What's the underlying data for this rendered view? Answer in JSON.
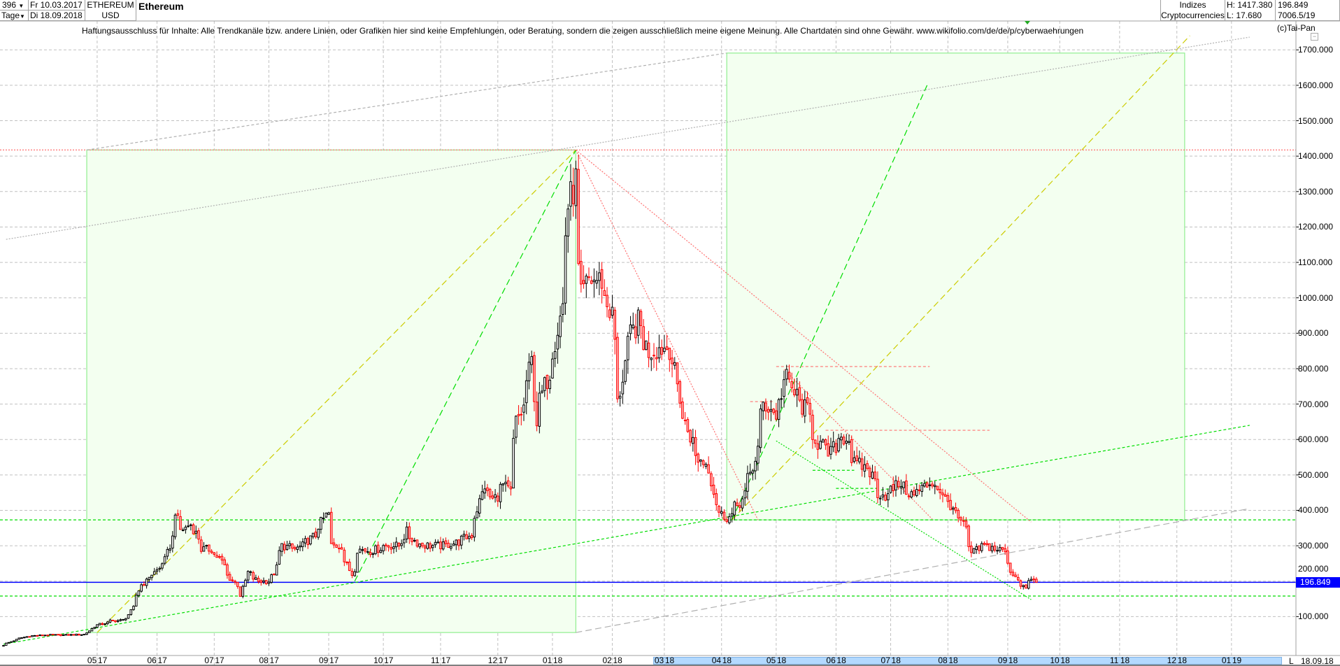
{
  "header": {
    "bar_count": "396",
    "bar_count_arrow": "▼",
    "period": "Tage",
    "period_arrow": "▼",
    "date_from": "Fr 10.03.2017",
    "date_to": "Di 18.09.2018",
    "symbol": "ETHEREUM",
    "currency": "USD",
    "title": "Ethereum",
    "category_1": "Indizes",
    "category_2": "Cryptocurrencies",
    "high": "H: 1417.380",
    "low": "L: 17.680",
    "last_value": "196.849",
    "extra_value": "7006.5/19"
  },
  "disclaimer": "Haftungsausschluss für Inhalte: Alle Trendkanäle bzw. andere Linien, oder Grafiken hier sind keine Empfehlungen, oder Beratung, sondern die zeigen ausschließlich meine eigene Meinung. Alle Chartdaten sind ohne Gewähr.  www.wikifolio.com/de/de/p/cyberwaehrungen",
  "copyright": "(c)Tai-Pan",
  "minimize_glyph": "−",
  "footer": {
    "scale_mode": "L",
    "last_date": "18.09.18"
  },
  "colors": {
    "up_candle": "#000000",
    "down_candle": "#ff0000",
    "grid": "#c0c0c0",
    "current_price": "#0000ff",
    "box_fill": "#f3fff0",
    "box_stroke": "#90ee90",
    "green": "#00dd00",
    "yellow": "#cccc00",
    "red": "#ff7070",
    "grey": "#b0b0b0"
  },
  "chart_data": {
    "type": "candlestick",
    "title": "Ethereum",
    "interval": "daily (weekdays)",
    "x_range": [
      "2017-03-10",
      "2019-01-25"
    ],
    "ylim": [
      0,
      1800
    ],
    "grid": true,
    "current_price": 196.849,
    "current_price_label": "196.849",
    "y_ticks": [
      {
        "value": 100,
        "label": "100.000"
      },
      {
        "value": 200,
        "label": "200.000"
      },
      {
        "value": 300,
        "label": "300.000"
      },
      {
        "value": 400,
        "label": "400.000"
      },
      {
        "value": 500,
        "label": "500.000"
      },
      {
        "value": 600,
        "label": "600.000"
      },
      {
        "value": 700,
        "label": "700.000"
      },
      {
        "value": 800,
        "label": "800.000"
      },
      {
        "value": 900,
        "label": "900.000"
      },
      {
        "value": 1000,
        "label": "1000.000"
      },
      {
        "value": 1100,
        "label": "1100.000"
      },
      {
        "value": 1200,
        "label": "1200.000"
      },
      {
        "value": 1300,
        "label": "1300.000"
      },
      {
        "value": 1400,
        "label": "1400.000"
      },
      {
        "value": 1500,
        "label": "1500.000"
      },
      {
        "value": 1600,
        "label": "1600.000"
      },
      {
        "value": 1700,
        "label": "1700.000"
      }
    ],
    "x_ticks": [
      {
        "date": "2017-05-01",
        "month": "05",
        "year": "17"
      },
      {
        "date": "2017-06-01",
        "month": "06",
        "year": "17"
      },
      {
        "date": "2017-07-01",
        "month": "07",
        "year": "17"
      },
      {
        "date": "2017-08-01",
        "month": "08",
        "year": "17"
      },
      {
        "date": "2017-09-01",
        "month": "09",
        "year": "17"
      },
      {
        "date": "2017-10-01",
        "month": "10",
        "year": "17"
      },
      {
        "date": "2017-11-01",
        "month": "11",
        "year": "17"
      },
      {
        "date": "2017-12-01",
        "month": "12",
        "year": "17"
      },
      {
        "date": "2018-01-01",
        "month": "01",
        "year": "18"
      },
      {
        "date": "2018-02-01",
        "month": "02",
        "year": "18"
      },
      {
        "date": "2018-03-01",
        "month": "03",
        "year": "18"
      },
      {
        "date": "2018-04-01",
        "month": "04",
        "year": "18"
      },
      {
        "date": "2018-05-01",
        "month": "05",
        "year": "18"
      },
      {
        "date": "2018-06-01",
        "month": "06",
        "year": "18"
      },
      {
        "date": "2018-07-01",
        "month": "07",
        "year": "18"
      },
      {
        "date": "2018-08-01",
        "month": "08",
        "year": "18"
      },
      {
        "date": "2018-09-01",
        "month": "09",
        "year": "18"
      },
      {
        "date": "2018-10-01",
        "month": "10",
        "year": "18"
      },
      {
        "date": "2018-11-01",
        "month": "11",
        "year": "18"
      },
      {
        "date": "2018-12-01",
        "month": "12",
        "year": "18"
      },
      {
        "date": "2019-01-01",
        "month": "01",
        "year": "19"
      }
    ],
    "highlight_range": [
      "2018-03-01",
      "2019-01-22"
    ],
    "close_keyframes": [
      [
        "2017-03-10",
        19
      ],
      [
        "2017-03-17",
        35
      ],
      [
        "2017-03-24",
        45
      ],
      [
        "2017-04-03",
        48
      ],
      [
        "2017-04-14",
        48
      ],
      [
        "2017-04-24",
        50
      ],
      [
        "2017-04-28",
        72
      ],
      [
        "2017-05-08",
        88
      ],
      [
        "2017-05-15",
        90
      ],
      [
        "2017-05-19",
        125
      ],
      [
        "2017-05-24",
        190
      ],
      [
        "2017-05-31",
        225
      ],
      [
        "2017-06-06",
        260
      ],
      [
        "2017-06-12",
        400
      ],
      [
        "2017-06-14",
        345
      ],
      [
        "2017-06-20",
        360
      ],
      [
        "2017-06-26",
        290
      ],
      [
        "2017-06-30",
        290
      ],
      [
        "2017-07-05",
        265
      ],
      [
        "2017-07-10",
        215
      ],
      [
        "2017-07-14",
        190
      ],
      [
        "2017-07-17",
        160
      ],
      [
        "2017-07-20",
        225
      ],
      [
        "2017-07-26",
        200
      ],
      [
        "2017-08-01",
        200
      ],
      [
        "2017-08-08",
        300
      ],
      [
        "2017-08-15",
        290
      ],
      [
        "2017-08-21",
        310
      ],
      [
        "2017-08-25",
        330
      ],
      [
        "2017-08-31",
        385
      ],
      [
        "2017-09-01",
        390
      ],
      [
        "2017-09-04",
        300
      ],
      [
        "2017-09-08",
        300
      ],
      [
        "2017-09-14",
        220
      ],
      [
        "2017-09-18",
        290
      ],
      [
        "2017-09-25",
        285
      ],
      [
        "2017-10-02",
        300
      ],
      [
        "2017-10-10",
        300
      ],
      [
        "2017-10-13",
        340
      ],
      [
        "2017-10-20",
        305
      ],
      [
        "2017-10-27",
        300
      ],
      [
        "2017-11-03",
        300
      ],
      [
        "2017-11-10",
        310
      ],
      [
        "2017-11-17",
        330
      ],
      [
        "2017-11-24",
        470
      ],
      [
        "2017-11-29",
        430
      ],
      [
        "2017-12-05",
        470
      ],
      [
        "2017-12-08",
        450
      ],
      [
        "2017-12-12",
        650
      ],
      [
        "2017-12-15",
        690
      ],
      [
        "2017-12-20",
        820
      ],
      [
        "2017-12-22",
        650
      ],
      [
        "2017-12-27",
        750
      ],
      [
        "2018-01-02",
        880
      ],
      [
        "2018-01-05",
        980
      ],
      [
        "2018-01-09",
        1260
      ],
      [
        "2018-01-12",
        1330
      ],
      [
        "2018-01-16",
        1000
      ],
      [
        "2018-01-19",
        1050
      ],
      [
        "2018-01-26",
        1050
      ],
      [
        "2018-02-01",
        950
      ],
      [
        "2018-02-05",
        700
      ],
      [
        "2018-02-09",
        860
      ],
      [
        "2018-02-15",
        930
      ],
      [
        "2018-02-21",
        850
      ],
      [
        "2018-02-28",
        860
      ],
      [
        "2018-03-05",
        860
      ],
      [
        "2018-03-09",
        720
      ],
      [
        "2018-03-15",
        610
      ],
      [
        "2018-03-19",
        550
      ],
      [
        "2018-03-26",
        520
      ],
      [
        "2018-03-30",
        395
      ],
      [
        "2018-04-05",
        380
      ],
      [
        "2018-04-12",
        430
      ],
      [
        "2018-04-18",
        520
      ],
      [
        "2018-04-24",
        700
      ],
      [
        "2018-05-01",
        670
      ],
      [
        "2018-05-05",
        800
      ],
      [
        "2018-05-10",
        730
      ],
      [
        "2018-05-17",
        680
      ],
      [
        "2018-05-23",
        590
      ],
      [
        "2018-05-29",
        560
      ],
      [
        "2018-06-05",
        610
      ],
      [
        "2018-06-08",
        600
      ],
      [
        "2018-06-12",
        530
      ],
      [
        "2018-06-19",
        520
      ],
      [
        "2018-06-25",
        450
      ],
      [
        "2018-06-29",
        440
      ],
      [
        "2018-07-06",
        480
      ],
      [
        "2018-07-13",
        440
      ],
      [
        "2018-07-20",
        470
      ],
      [
        "2018-07-24",
        480
      ],
      [
        "2018-07-31",
        430
      ],
      [
        "2018-08-03",
        410
      ],
      [
        "2018-08-09",
        360
      ],
      [
        "2018-08-14",
        280
      ],
      [
        "2018-08-20",
        300
      ],
      [
        "2018-08-28",
        290
      ],
      [
        "2018-08-31",
        285
      ],
      [
        "2018-09-05",
        220
      ],
      [
        "2018-09-12",
        180
      ],
      [
        "2018-09-14",
        210
      ],
      [
        "2018-09-18",
        196.849
      ]
    ],
    "period_high": 1417.38,
    "period_low": 17.68,
    "annotations": {
      "boxes": [
        {
          "from": [
            "2017-04-25",
            55
          ],
          "to": [
            "2018-01-12",
            1417.38
          ]
        },
        {
          "from": [
            "2018-04-04",
            373
          ],
          "to": [
            "2018-12-06",
            1691
          ]
        }
      ],
      "horizontal_lines": [
        {
          "price": 1417.38,
          "color": "red",
          "style": "dotted"
        },
        {
          "price": 373,
          "color": "green",
          "style": "dashed"
        },
        {
          "price": 158,
          "color": "green",
          "style": "dashed"
        },
        {
          "price": 196.849,
          "color": "current_price",
          "style": "solid"
        }
      ],
      "segments": [
        {
          "from": [
            "2017-05-01",
            55
          ],
          "to": [
            "2018-01-12",
            1417.38
          ],
          "color": "yellow",
          "style": "longdash"
        },
        {
          "from": [
            "2017-09-15",
            200
          ],
          "to": [
            "2018-01-12",
            1417.38
          ],
          "color": "green",
          "style": "longdash"
        },
        {
          "from": [
            "2018-04-06",
            373
          ],
          "to": [
            "2018-07-20",
            1600
          ],
          "color": "green",
          "style": "longdash"
        },
        {
          "from": [
            "2018-04-06",
            373
          ],
          "to": [
            "2018-12-10",
            1740
          ],
          "color": "yellow",
          "style": "longdash"
        },
        {
          "from": [
            "2017-03-10",
            22
          ],
          "to": [
            "2019-01-10",
            640
          ],
          "color": "green",
          "style": "dashed"
        },
        {
          "from": [
            "2017-04-25",
            1417.38
          ],
          "to": [
            "2018-04-04",
            1691
          ],
          "color": "grey",
          "style": "dashed"
        },
        {
          "from": [
            "2017-03-13",
            1165
          ],
          "to": [
            "2019-01-10",
            1736
          ],
          "color": "grey",
          "style": "dotted"
        },
        {
          "from": [
            "2018-01-12",
            55
          ],
          "to": [
            "2019-01-10",
            405
          ],
          "color": "grey",
          "style": "longdash"
        },
        {
          "from": [
            "2018-01-12",
            1417.38
          ],
          "to": [
            "2018-04-20",
            373
          ],
          "color": "red",
          "style": "dotted"
        },
        {
          "from": [
            "2018-01-12",
            1417.38
          ],
          "to": [
            "2018-09-14",
            367
          ],
          "color": "red",
          "style": "dotted"
        },
        {
          "from": [
            "2018-05-04",
            798
          ],
          "to": [
            "2018-07-24",
            375
          ],
          "color": "red",
          "style": "dotted"
        },
        {
          "from": [
            "2018-05-01",
            806
          ],
          "to": [
            "2018-07-21",
            806
          ],
          "color": "red",
          "style": "dashed"
        },
        {
          "from": [
            "2018-05-27",
            626
          ],
          "to": [
            "2018-08-23",
            626
          ],
          "color": "red",
          "style": "dashed"
        },
        {
          "from": [
            "2018-04-17",
            707
          ],
          "to": [
            "2018-04-30",
            707
          ],
          "color": "red",
          "style": "dashed"
        },
        {
          "from": [
            "2018-05-01",
            596
          ],
          "to": [
            "2018-09-14",
            148
          ],
          "color": "green",
          "style": "dotted"
        },
        {
          "from": [
            "2018-05-20",
            513
          ],
          "to": [
            "2018-06-12",
            513
          ],
          "color": "green",
          "style": "dashed"
        },
        {
          "from": [
            "2018-06-01",
            462
          ],
          "to": [
            "2018-06-25",
            462
          ],
          "color": "green",
          "style": "dashed"
        }
      ]
    }
  }
}
